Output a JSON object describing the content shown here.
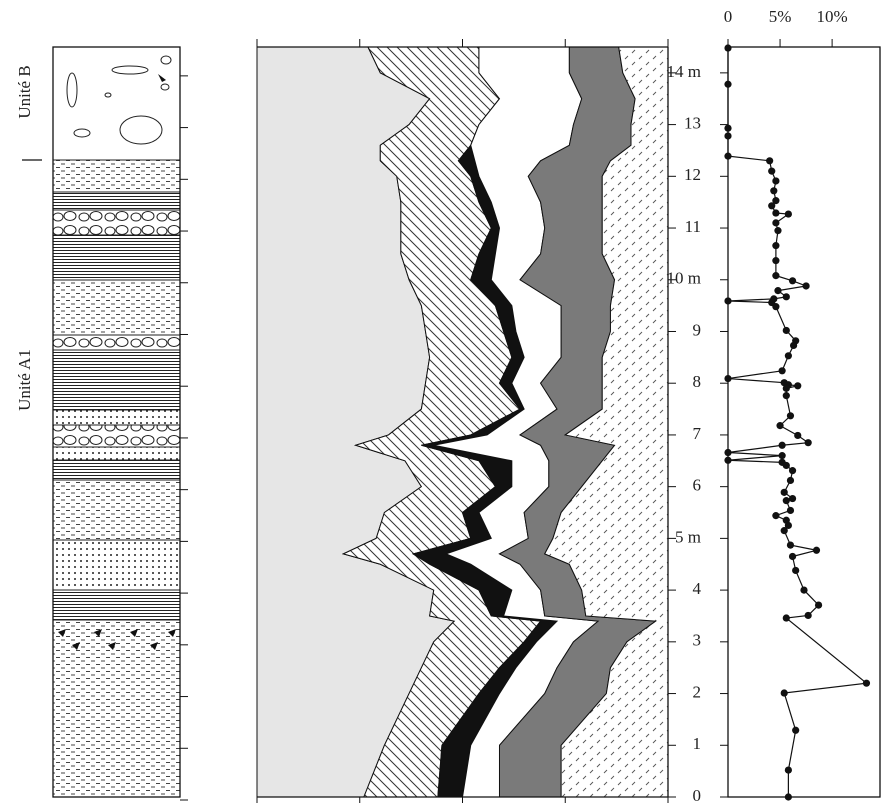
{
  "chart_data": [
    {
      "type": "area",
      "stacked": true,
      "orientation": "horizontal",
      "y": [
        0,
        1,
        2,
        2.5,
        3,
        3.4,
        3.5,
        4,
        4.5,
        4.7,
        5,
        5.5,
        6,
        6.5,
        6.8,
        7,
        7.5,
        8,
        8.5,
        9,
        9.5,
        10,
        10.5,
        11,
        11.5,
        12,
        12.3,
        12.6,
        13,
        13.5,
        14,
        14.5
      ],
      "series": [
        {
          "color": "#e6e6e6",
          "pattern": "none",
          "values": [
            26,
            31,
            37,
            40,
            43,
            48,
            42,
            43,
            30,
            21,
            29,
            31,
            40,
            36,
            24,
            32,
            40,
            41,
            42,
            41,
            40,
            37,
            35,
            35,
            35,
            34,
            30,
            30,
            37,
            42,
            30,
            27
          ]
        },
        {
          "color": "#ffffff",
          "pattern": "hatch",
          "values": [
            18,
            14,
            17,
            19,
            22,
            21,
            15,
            11,
            12,
            17,
            23,
            19,
            18,
            18,
            16,
            20,
            24,
            18,
            20,
            19,
            18,
            15,
            19,
            22,
            19,
            18,
            19,
            22,
            17,
            17,
            24,
            27
          ]
        },
        {
          "color": "#111111",
          "pattern": "none",
          "values": [
            6,
            7,
            5,
            4,
            3,
            4,
            3,
            8,
            10,
            8,
            5,
            4,
            4,
            8,
            3,
            4,
            1,
            3,
            3,
            3,
            4,
            5,
            4,
            2,
            3,
            2,
            4,
            0,
            0,
            0,
            0,
            0
          ]
        },
        {
          "color": "#ffffff",
          "pattern": "none",
          "values": [
            9,
            7,
            11,
            10,
            9,
            10,
            10,
            7,
            12,
            13,
            9,
            11,
            9,
            9,
            26,
            8,
            8,
            7,
            9,
            11,
            12,
            7,
            11,
            11,
            12,
            12,
            16,
            24,
            23,
            20,
            22,
            22
          ]
        },
        {
          "color": "#7a7a7a",
          "pattern": "none",
          "values": [
            15,
            15,
            15,
            13,
            13,
            14,
            10,
            10,
            12,
            11,
            6,
            9,
            8,
            13,
            18,
            11,
            11,
            15,
            10,
            12,
            12,
            23,
            15,
            14,
            15,
            18,
            17,
            15,
            14,
            13,
            13,
            12
          ]
        },
        {
          "color": "#ffffff",
          "pattern": "dashes",
          "values": [
            26,
            26,
            15,
            14,
            10,
            3,
            20,
            21,
            24,
            30,
            28,
            26,
            21,
            16,
            13,
            25,
            16,
            16,
            16,
            14,
            14,
            13,
            16,
            16,
            16,
            16,
            14,
            9,
            9,
            8,
            11,
            12
          ]
        }
      ],
      "xlim": [
        0,
        100
      ],
      "xticks": [
        0,
        25,
        50,
        75,
        100
      ],
      "ylim": [
        0,
        14.5
      ],
      "yticks": [
        0,
        1,
        2,
        3,
        4,
        5,
        6,
        7,
        8,
        9,
        10,
        11,
        12,
        13,
        14
      ]
    },
    {
      "type": "line",
      "orientation": "vertical",
      "color": "#111111",
      "markers": true,
      "y": [
        14.48,
        13.78,
        12.93,
        12.78,
        12.39,
        12.3,
        12.1,
        11.91,
        11.72,
        11.53,
        11.43,
        11.29,
        11.27,
        11.1,
        10.95,
        10.66,
        10.37,
        10.08,
        9.98,
        9.88,
        9.79,
        9.67,
        9.63,
        9.59,
        9.56,
        9.48,
        9.02,
        8.82,
        8.73,
        8.53,
        8.24,
        8.09,
        8.01,
        7.97,
        7.95,
        7.9,
        7.76,
        7.37,
        7.18,
        6.99,
        6.85,
        6.8,
        6.66,
        6.6,
        6.51,
        6.47,
        6.41,
        6.31,
        6.12,
        5.89,
        5.77,
        5.73,
        5.54,
        5.44,
        5.35,
        5.25,
        5.15,
        4.87,
        4.77,
        4.65,
        4.38,
        4,
        3.71,
        3.51,
        3.46,
        2.2,
        2.01,
        1.29,
        0.52,
        0
      ],
      "series": [
        {
          "color": "#111111",
          "values": [
            0,
            0,
            0,
            0,
            0,
            4,
            4.2,
            4.6,
            4.4,
            4.6,
            4.2,
            4.6,
            5.8,
            4.6,
            4.8,
            4.6,
            4.6,
            4.6,
            6.2,
            7.5,
            4.8,
            5.6,
            4.4,
            0,
            4.2,
            4.6,
            5.6,
            6.5,
            6.3,
            5.8,
            5.2,
            0,
            5.4,
            5.8,
            6.7,
            5.6,
            5.6,
            6,
            5,
            6.7,
            7.7,
            5.2,
            0,
            5.2,
            0,
            5.2,
            5.6,
            6.2,
            6,
            5.4,
            6.2,
            5.6,
            6,
            4.6,
            5.6,
            5.8,
            5.4,
            6,
            8.5,
            6.2,
            6.5,
            7.3,
            8.7,
            7.7,
            5.6,
            13.3,
            5.4,
            6.5,
            5.8,
            5.8
          ]
        }
      ],
      "xlim": [
        0,
        14.6
      ],
      "xticks": [
        0,
        {
          "value": 5,
          "label": "5%"
        },
        {
          "value": 10,
          "label": "10%"
        }
      ],
      "ylim": [
        0,
        14.5
      ],
      "yticks": [
        0,
        1,
        2,
        3,
        4,
        {
          "value": 5,
          "label": "5 m"
        },
        6,
        7,
        8,
        9,
        {
          "value": 10,
          "label": "10 m"
        },
        11,
        12,
        13,
        {
          "value": 14,
          "label": "14 m"
        }
      ]
    }
  ],
  "column": {
    "units": [
      "Unité B",
      "Unité A1"
    ]
  }
}
